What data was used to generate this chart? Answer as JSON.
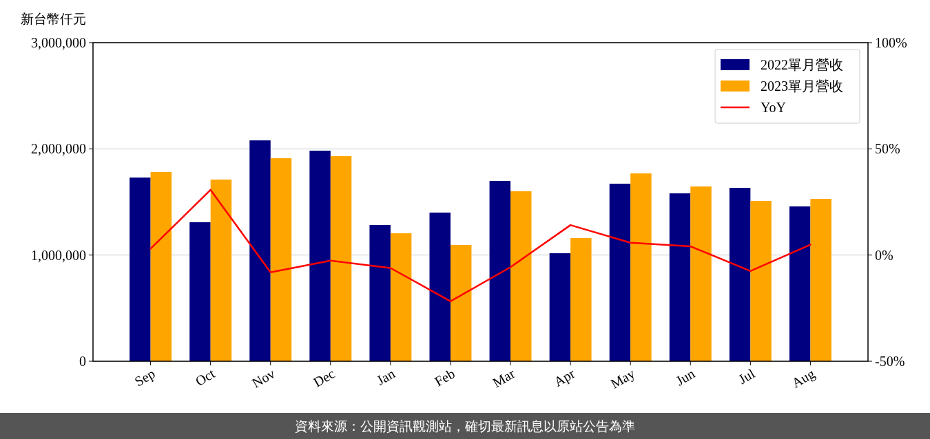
{
  "chart_data": {
    "type": "bar",
    "ylabel": "新台幣仟元",
    "categories": [
      "Sep",
      "Oct",
      "Nov",
      "Dec",
      "Jan",
      "Feb",
      "Mar",
      "Apr",
      "May",
      "Jun",
      "Jul",
      "Aug"
    ],
    "series": [
      {
        "name": "2022單月營收",
        "color": "#000080",
        "values": [
          1730000,
          1309000,
          2080000,
          1983000,
          1283000,
          1400000,
          1698000,
          1017000,
          1672000,
          1581000,
          1633000,
          1458000
        ]
      },
      {
        "name": "2023單月營收",
        "color": "#ffa500",
        "values": [
          1782000,
          1711000,
          1912000,
          1931000,
          1205000,
          1095000,
          1601000,
          1160000,
          1769000,
          1646000,
          1510000,
          1529000
        ]
      },
      {
        "name": "YoY",
        "type": "line",
        "axis": "y2",
        "color": "#ff0000",
        "values": [
          3.0,
          30.7,
          -8.1,
          -2.6,
          -6.1,
          -21.8,
          -5.7,
          14.1,
          5.8,
          4.1,
          -7.5,
          4.9
        ]
      }
    ],
    "ylim": [
      0,
      3000000
    ],
    "yticks": [
      0,
      {
        "value": 1000000,
        "label": "1,000,000"
      },
      {
        "value": 2000000,
        "label": "2,000,000"
      },
      {
        "value": 3000000,
        "label": "3,000,000"
      }
    ],
    "y2lim": [
      -50,
      100
    ],
    "y2ticks": [
      {
        "value": -50,
        "label": "-50%"
      },
      {
        "value": 0,
        "label": "0%"
      },
      {
        "value": 50,
        "label": "50%"
      },
      {
        "value": 100,
        "label": "100%"
      }
    ],
    "grid": "y",
    "legend": "top right",
    "marker": "none",
    "annotations": [
      "資料來源：公開資訊觀測站，確切最新訊息以原站公告為準"
    ]
  }
}
